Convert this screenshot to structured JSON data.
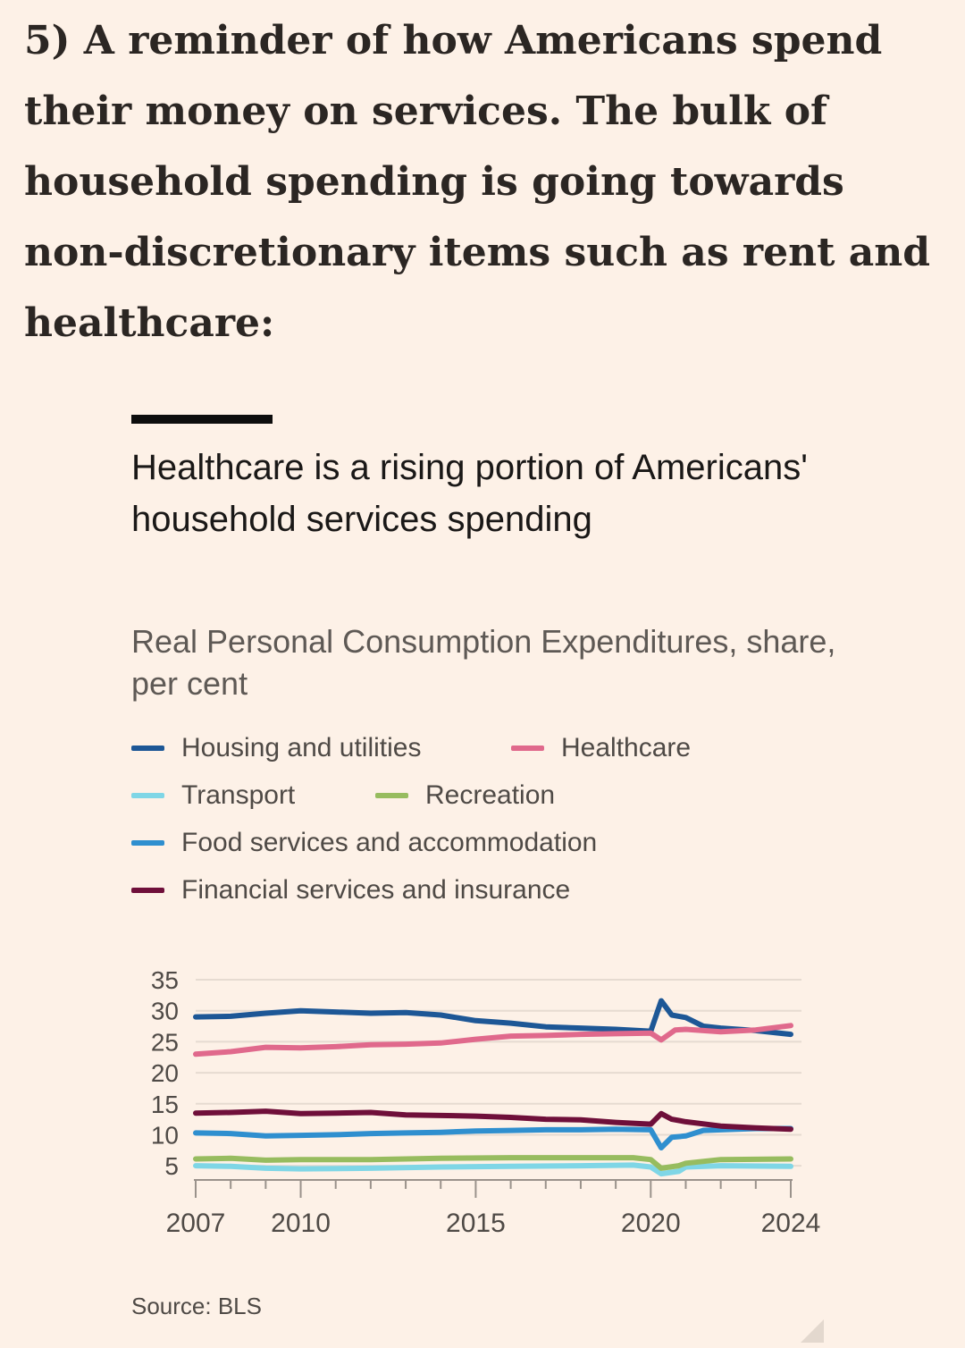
{
  "post": {
    "intro_text": "5) A reminder of how Americans spend their money on services. The bulk of household spending is going towards non-discretionary items such as rent and healthcare:"
  },
  "source": "Source: BLS",
  "chart_data": {
    "type": "line",
    "title": "Healthcare is a rising portion of Americans' household services spending",
    "subtitle": "Real Personal Consumption Expenditures, share, per cent",
    "xlabel": "",
    "ylabel": "",
    "xlim": [
      2007,
      2024
    ],
    "ylim": [
      3,
      35
    ],
    "yticks": [
      35,
      30,
      25,
      20,
      15,
      10,
      5
    ],
    "xticks": [
      2007,
      2010,
      2015,
      2020,
      2024
    ],
    "grid": true,
    "legend_position": "top",
    "series": [
      {
        "name": "Housing and utilities",
        "color": "#1d5796",
        "points": [
          [
            2007,
            29.0
          ],
          [
            2008,
            29.1
          ],
          [
            2009,
            29.6
          ],
          [
            2010,
            30.0
          ],
          [
            2011,
            29.8
          ],
          [
            2012,
            29.6
          ],
          [
            2013,
            29.7
          ],
          [
            2014,
            29.3
          ],
          [
            2015,
            28.4
          ],
          [
            2016,
            28.0
          ],
          [
            2017,
            27.4
          ],
          [
            2018,
            27.2
          ],
          [
            2019,
            27.0
          ],
          [
            2020,
            26.7
          ],
          [
            2020.3,
            31.6
          ],
          [
            2020.6,
            29.3
          ],
          [
            2021,
            28.9
          ],
          [
            2021.5,
            27.5
          ],
          [
            2022,
            27.2
          ],
          [
            2023,
            26.8
          ],
          [
            2024,
            26.2
          ]
        ]
      },
      {
        "name": "Healthcare",
        "color": "#e0698c",
        "points": [
          [
            2007,
            23.0
          ],
          [
            2008,
            23.4
          ],
          [
            2009,
            24.1
          ],
          [
            2010,
            24.0
          ],
          [
            2011,
            24.2
          ],
          [
            2012,
            24.5
          ],
          [
            2013,
            24.6
          ],
          [
            2014,
            24.8
          ],
          [
            2015,
            25.4
          ],
          [
            2016,
            25.9
          ],
          [
            2017,
            26.0
          ],
          [
            2018,
            26.2
          ],
          [
            2019,
            26.3
          ],
          [
            2020,
            26.4
          ],
          [
            2020.3,
            25.3
          ],
          [
            2020.7,
            26.9
          ],
          [
            2021,
            27.0
          ],
          [
            2022,
            26.6
          ],
          [
            2023,
            26.9
          ],
          [
            2024,
            27.6
          ]
        ]
      },
      {
        "name": "Transport",
        "color": "#7fd6e6",
        "points": [
          [
            2007,
            5.0
          ],
          [
            2008,
            4.9
          ],
          [
            2009,
            4.6
          ],
          [
            2010,
            4.5
          ],
          [
            2012,
            4.6
          ],
          [
            2014,
            4.8
          ],
          [
            2016,
            4.9
          ],
          [
            2018,
            5.0
          ],
          [
            2019.5,
            5.1
          ],
          [
            2020,
            4.8
          ],
          [
            2020.3,
            3.7
          ],
          [
            2020.8,
            4.1
          ],
          [
            2021,
            4.8
          ],
          [
            2022,
            5.0
          ],
          [
            2024,
            4.9
          ]
        ]
      },
      {
        "name": "Recreation",
        "color": "#97bc5f",
        "points": [
          [
            2007,
            6.1
          ],
          [
            2008,
            6.2
          ],
          [
            2009,
            5.9
          ],
          [
            2010,
            6.0
          ],
          [
            2012,
            6.0
          ],
          [
            2014,
            6.2
          ],
          [
            2016,
            6.3
          ],
          [
            2018,
            6.3
          ],
          [
            2019.5,
            6.3
          ],
          [
            2020,
            6.0
          ],
          [
            2020.3,
            4.6
          ],
          [
            2020.8,
            5.0
          ],
          [
            2021,
            5.4
          ],
          [
            2022,
            6.0
          ],
          [
            2024,
            6.1
          ]
        ]
      },
      {
        "name": "Food services and accommodation",
        "color": "#2f8fcf",
        "points": [
          [
            2007,
            10.3
          ],
          [
            2008,
            10.2
          ],
          [
            2009,
            9.8
          ],
          [
            2010,
            9.9
          ],
          [
            2011,
            10.0
          ],
          [
            2012,
            10.2
          ],
          [
            2013,
            10.3
          ],
          [
            2014,
            10.4
          ],
          [
            2015,
            10.6
          ],
          [
            2016,
            10.7
          ],
          [
            2017,
            10.8
          ],
          [
            2018,
            10.8
          ],
          [
            2019,
            10.9
          ],
          [
            2020,
            10.8
          ],
          [
            2020.3,
            7.9
          ],
          [
            2020.6,
            9.6
          ],
          [
            2021,
            9.8
          ],
          [
            2021.5,
            10.7
          ],
          [
            2022,
            10.8
          ],
          [
            2023,
            11.0
          ],
          [
            2024,
            11.0
          ]
        ]
      },
      {
        "name": "Financial services and insurance",
        "color": "#6f0f3a",
        "points": [
          [
            2007,
            13.5
          ],
          [
            2008,
            13.6
          ],
          [
            2009,
            13.8
          ],
          [
            2010,
            13.4
          ],
          [
            2011,
            13.5
          ],
          [
            2012,
            13.6
          ],
          [
            2013,
            13.2
          ],
          [
            2014,
            13.1
          ],
          [
            2015,
            13.0
          ],
          [
            2016,
            12.8
          ],
          [
            2017,
            12.5
          ],
          [
            2018,
            12.4
          ],
          [
            2019,
            12.0
          ],
          [
            2020,
            11.7
          ],
          [
            2020.3,
            13.4
          ],
          [
            2020.6,
            12.5
          ],
          [
            2021,
            12.1
          ],
          [
            2022,
            11.4
          ],
          [
            2023,
            11.1
          ],
          [
            2024,
            10.9
          ]
        ]
      }
    ]
  }
}
